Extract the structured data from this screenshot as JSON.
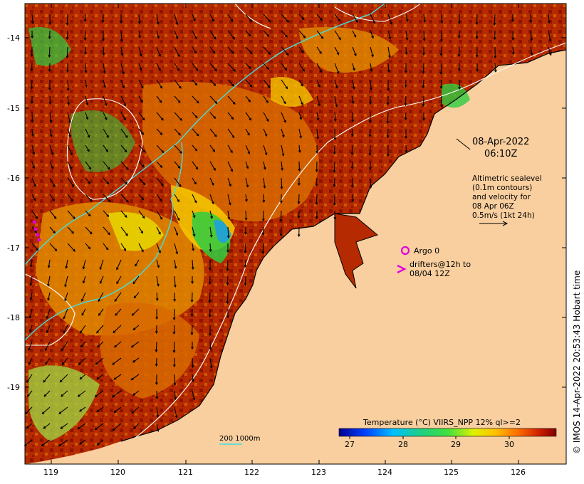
{
  "map": {
    "date": "08-Apr-2022",
    "time": "06:10Z",
    "altimetry_lines": [
      "Altimetric sealevel",
      "(0.1m contours)",
      "and velocity for",
      "08 Apr 06Z",
      "0.5m/s (1kt 24h)"
    ],
    "argo_label": "Argo 0",
    "drifter_lines": [
      "drifters@12h to",
      "08/04 12Z"
    ],
    "scale_label": "200  1000m",
    "colorbar_title": "Temperature (°C) VIIRS_NPP 12% ql>=2",
    "colorbar_ticks": [
      "27",
      "28",
      "29",
      "30"
    ],
    "lon_ticks": [
      "119",
      "120",
      "121",
      "122",
      "123",
      "124",
      "125",
      "126"
    ],
    "lat_ticks": [
      "-14",
      "-15",
      "-16",
      "-17",
      "-18",
      "-19"
    ],
    "credit": "© IMOS 14-Apr-2022 20:53:43 Hobart time"
  },
  "colors": {
    "land": "#f9cf9f",
    "sea_warm": "#9a1a00",
    "sea_mid": "#d86a00",
    "sea_cool": "#f4c400",
    "sea_cold": "#2ecc40",
    "isobath": "#40e0e0",
    "contour": "#ffffff",
    "argo": "#e000e0"
  }
}
